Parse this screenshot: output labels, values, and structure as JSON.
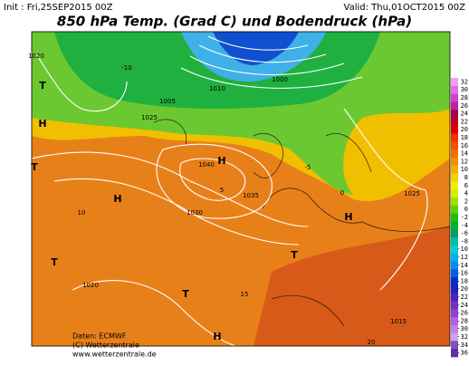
{
  "header": {
    "init": "Init : Fri,25SEP2015 00Z",
    "valid": "Valid: Thu,01OCT2015 00Z",
    "title": "850 hPa Temp. (Grad C) und Bodendruck (hPa)"
  },
  "legend": {
    "labels": [
      32,
      30,
      28,
      26,
      24,
      22,
      20,
      18,
      16,
      14,
      12,
      10,
      8,
      6,
      4,
      2,
      0,
      -2,
      -4,
      -6,
      -8,
      -10,
      -12,
      -14,
      -16,
      -18,
      -20,
      -22,
      -24,
      -26,
      -28,
      -30,
      -32,
      -34,
      -36
    ],
    "colors": [
      "#f0a0f0",
      "#e070e0",
      "#d040d0",
      "#c020a0",
      "#a00050",
      "#c00020",
      "#e00000",
      "#f03000",
      "#f05000",
      "#f07000",
      "#f09000",
      "#f0b000",
      "#f0d000",
      "#f0f000",
      "#d0f000",
      "#a0e000",
      "#60d000",
      "#20c000",
      "#00b030",
      "#00a060",
      "#00c0a0",
      "#00d0d0",
      "#00b0f0",
      "#0090f0",
      "#0060e0",
      "#0030d0",
      "#2020c0",
      "#5020c0",
      "#7030c0",
      "#9040d0",
      "#b060e0",
      "#c080e8",
      "#d0a0f0",
      "#8050c0",
      "#6030a0"
    ]
  },
  "map": {
    "labels": [
      "H",
      "T",
      "T",
      "H",
      "H",
      "H",
      "T",
      "T",
      "H",
      "T",
      "1020",
      "1025",
      "1030",
      "1035",
      "1040",
      "1010",
      "1005",
      "1000",
      "1015",
      "1020",
      "1025",
      "-10",
      "-5",
      "0",
      "5",
      "10",
      "15",
      "20"
    ]
  },
  "footer": {
    "lines": [
      "Daten: ECMWF",
      "(C) Wetterzentrale",
      "www.wetterzentrale.de"
    ]
  }
}
